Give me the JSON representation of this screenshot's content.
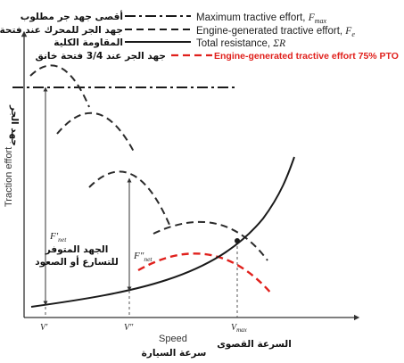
{
  "legend": {
    "items": [
      {
        "ar": "أقصى جهد جر مطلوب",
        "en_main": "Maximum tractive effort, ",
        "en_sym": "F",
        "en_sub": "max",
        "style": "dash-dot",
        "color": "#1a1a1a"
      },
      {
        "ar": "جهد الجر للمحرك عند فتحة خانق كاملة",
        "en_main": "Engine-generated tractive effort, ",
        "en_sym": "F",
        "en_sub": "e",
        "style": "dashed",
        "color": "#1a1a1a"
      },
      {
        "ar": "المقاومة الكلية",
        "en_main": "Total resistance, ",
        "en_sym": "ΣR",
        "en_sub": "",
        "style": "solid",
        "color": "#1a1a1a"
      },
      {
        "ar": "جهد الجر عند 3/4 فتحة خانق",
        "en_main": "Engine-generated tractive effort 75% PTO",
        "en_sym": "",
        "en_sub": "",
        "style": "dashed-red",
        "color": "#e0201c"
      }
    ]
  },
  "axes": {
    "y_label_en": "Traction effort",
    "y_label_ar": "جهد الجر",
    "x_label_en": "Speed",
    "x_label_ar": "سرعة السيارة",
    "x_ticks": [
      {
        "sym": "V",
        "sup": "′",
        "sub": ""
      },
      {
        "sym": "V",
        "sup": "″",
        "sub": ""
      },
      {
        "sym": "V",
        "sup": "",
        "sub": "max"
      }
    ],
    "vmax_label_ar": "السرعة القصوى"
  },
  "annotations": {
    "f_net_sym": "F′",
    "f_net_sub": "net",
    "f2_net_sym": "F″",
    "f2_net_sub": "net",
    "available_ar_line1": "الجهد المتوفر",
    "available_ar_line2": "للتسارع أو الصعود"
  },
  "colors": {
    "ink": "#1a1a1a",
    "pto": "#e0201c"
  }
}
